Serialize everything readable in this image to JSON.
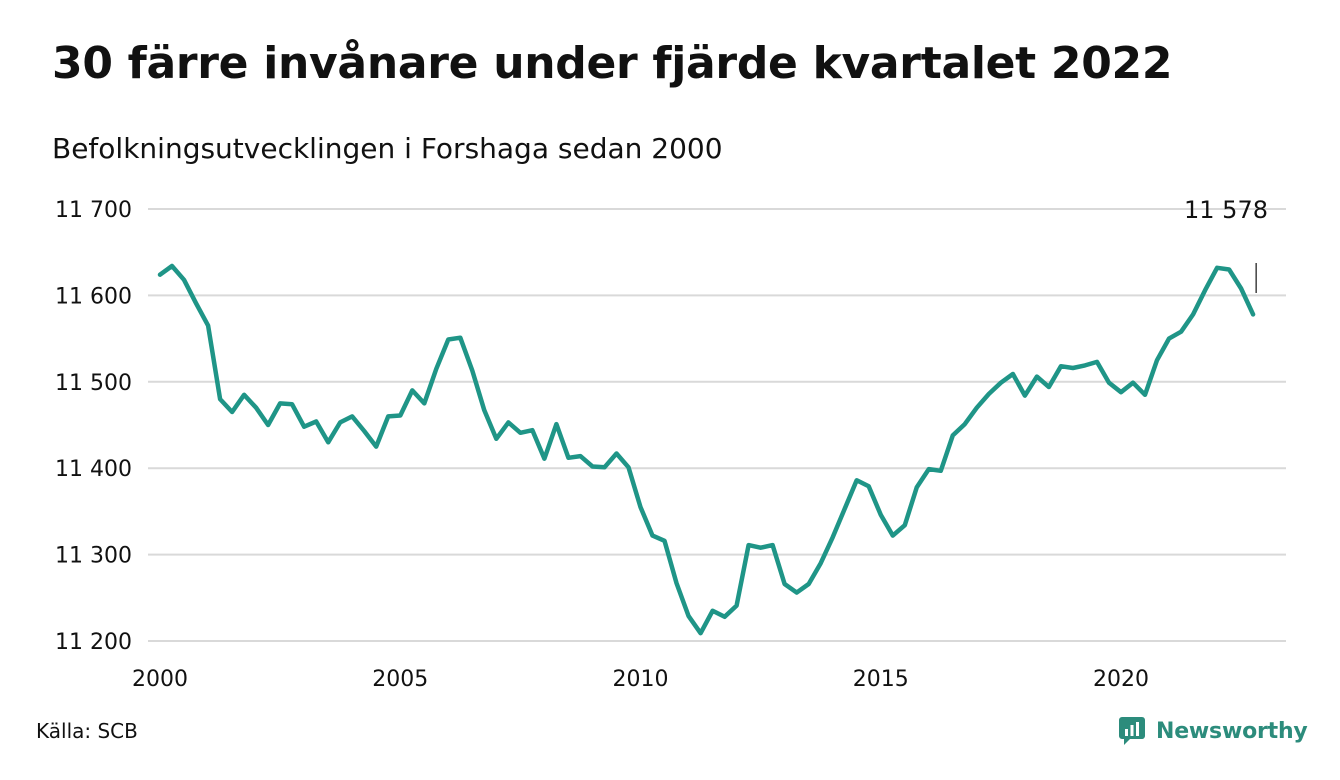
{
  "title": "30 färre invånare under fjärde kvartalet 2022",
  "subtitle": "Befolkningsutvecklingen i Forshaga sedan 2000",
  "source": "Källa: SCB",
  "brand": {
    "name": "Newsworthy",
    "icon": "newsworthy-logo-icon",
    "color": "#2c8c7c"
  },
  "chart_data": {
    "type": "line",
    "title": "30 färre invånare under fjärde kvartalet 2022",
    "subtitle": "Befolkningsutvecklingen i Forshaga sedan 2000",
    "xlabel": "",
    "ylabel": "",
    "x_unit": "quarter",
    "xlim": [
      2000,
      2023.5
    ],
    "ylim": [
      11200,
      11700
    ],
    "y_ticks": [
      11200,
      11300,
      11400,
      11500,
      11600,
      11700
    ],
    "y_tick_labels": [
      "11 200",
      "11 300",
      "11 400",
      "11 500",
      "11 600",
      "11 700"
    ],
    "x_ticks": [
      2000,
      2005,
      2010,
      2015,
      2020
    ],
    "x_tick_labels": [
      "2000",
      "2005",
      "2010",
      "2015",
      "2020"
    ],
    "grid": true,
    "line_color": "#1f9587",
    "annotation": {
      "label": "11 578",
      "value": 11578,
      "at": "last point"
    },
    "series": [
      {
        "start_quarter": "2000 Q1",
        "values": [
          11624,
          11634,
          11618,
          11591,
          11565,
          11480,
          11465,
          11485,
          11470,
          11450,
          11475,
          11474,
          11448,
          11454,
          11430,
          11453,
          11460,
          11443,
          11425,
          11460,
          11461,
          11490,
          11475,
          11515,
          11549,
          11551,
          11513,
          11467,
          11434,
          11453,
          11441,
          11444,
          11411,
          11451,
          11412,
          11414,
          11402,
          11401,
          11417,
          11401,
          11355,
          11322,
          11316,
          11267,
          11229,
          11209,
          11235,
          11228,
          11241,
          11311,
          11308,
          11311,
          11266,
          11256,
          11266,
          11290,
          11320,
          11353,
          11386,
          11379,
          11346,
          11322,
          11334,
          11378,
          11399,
          11397,
          11438,
          11451,
          11470,
          11486,
          11499,
          11509,
          11484,
          11506,
          11494,
          11518,
          11516,
          11519,
          11523,
          11499,
          11488,
          11499,
          11485,
          11525,
          11550,
          11558,
          11578,
          11606,
          11632,
          11630,
          11608,
          11578
        ]
      }
    ]
  }
}
